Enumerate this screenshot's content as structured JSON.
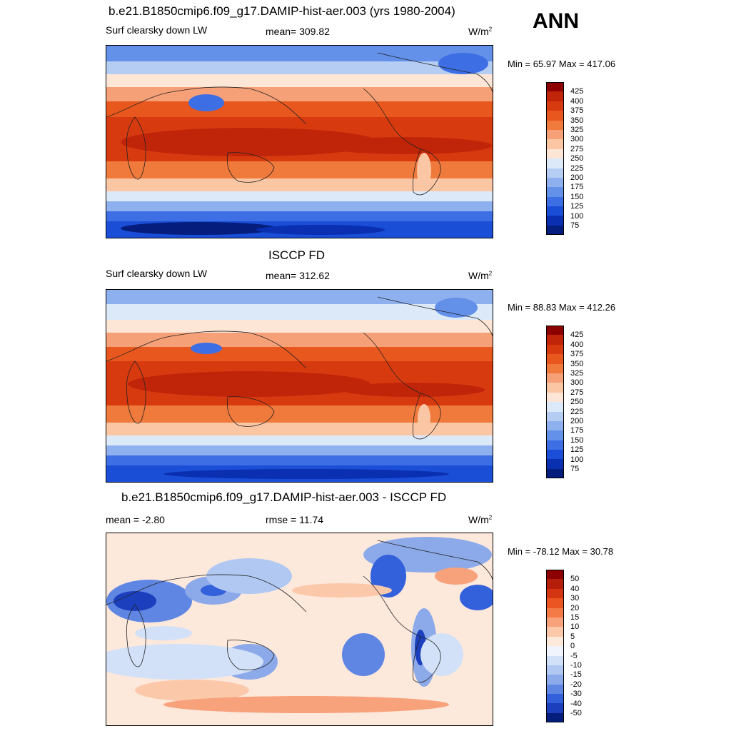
{
  "season": "ANN",
  "panels": [
    {
      "title": "b.e21.B1850cmip6.f09_g17.DAMIP-hist-aer.003 (yrs 1980-2004)",
      "left_label": "Surf clearsky down LW",
      "center_label": "mean= 309.82",
      "units": "W/m",
      "units_sup": "2",
      "minmax": "Min =  65.97 Max = 417.06",
      "colorbar_labels": [
        "425",
        "400",
        "375",
        "350",
        "325",
        "300",
        "275",
        "250",
        "225",
        "200",
        "175",
        "150",
        "125",
        "100",
        "75"
      ]
    },
    {
      "title": "ISCCP FD",
      "left_label": "Surf clearsky down LW",
      "center_label": "mean= 312.62",
      "units": "W/m",
      "units_sup": "2",
      "minmax": "Min =  88.83 Max = 412.26",
      "colorbar_labels": [
        "425",
        "400",
        "375",
        "350",
        "325",
        "300",
        "275",
        "250",
        "225",
        "200",
        "175",
        "150",
        "125",
        "100",
        "75"
      ]
    },
    {
      "title": "b.e21.B1850cmip6.f09_g17.DAMIP-hist-aer.003 - ISCCP FD",
      "left_label": "mean =  -2.80",
      "center_label": "rmse =  11.74",
      "units": "W/m",
      "units_sup": "2",
      "minmax": "Min = -78.12 Max =  30.78",
      "colorbar_labels": [
        "50",
        "40",
        "30",
        "20",
        "15",
        "10",
        "5",
        "0",
        "-5",
        "-10",
        "-15",
        "-20",
        "-30",
        "-40",
        "-50"
      ]
    }
  ],
  "colors": {
    "field_scale": [
      "#8c0000",
      "#c0250a",
      "#d83a10",
      "#e8581e",
      "#f07a3c",
      "#f6a077",
      "#fbc6a4",
      "#fde6d6",
      "#dce9f9",
      "#b5cdf3",
      "#8fb0ee",
      "#6390e8",
      "#3d6ee4",
      "#1a4ed6",
      "#0a2fb0",
      "#051d7c"
    ],
    "diff_scale": [
      "#8c0000",
      "#b51e0a",
      "#d33510",
      "#ea5522",
      "#f37a44",
      "#f8a27c",
      "#fbc9aa",
      "#fde8dc",
      "#f0f4fc",
      "#d2e1f7",
      "#b0c8f2",
      "#8caae9",
      "#5f86e3",
      "#3360db",
      "#1b3fbd",
      "#051d7c"
    ]
  }
}
